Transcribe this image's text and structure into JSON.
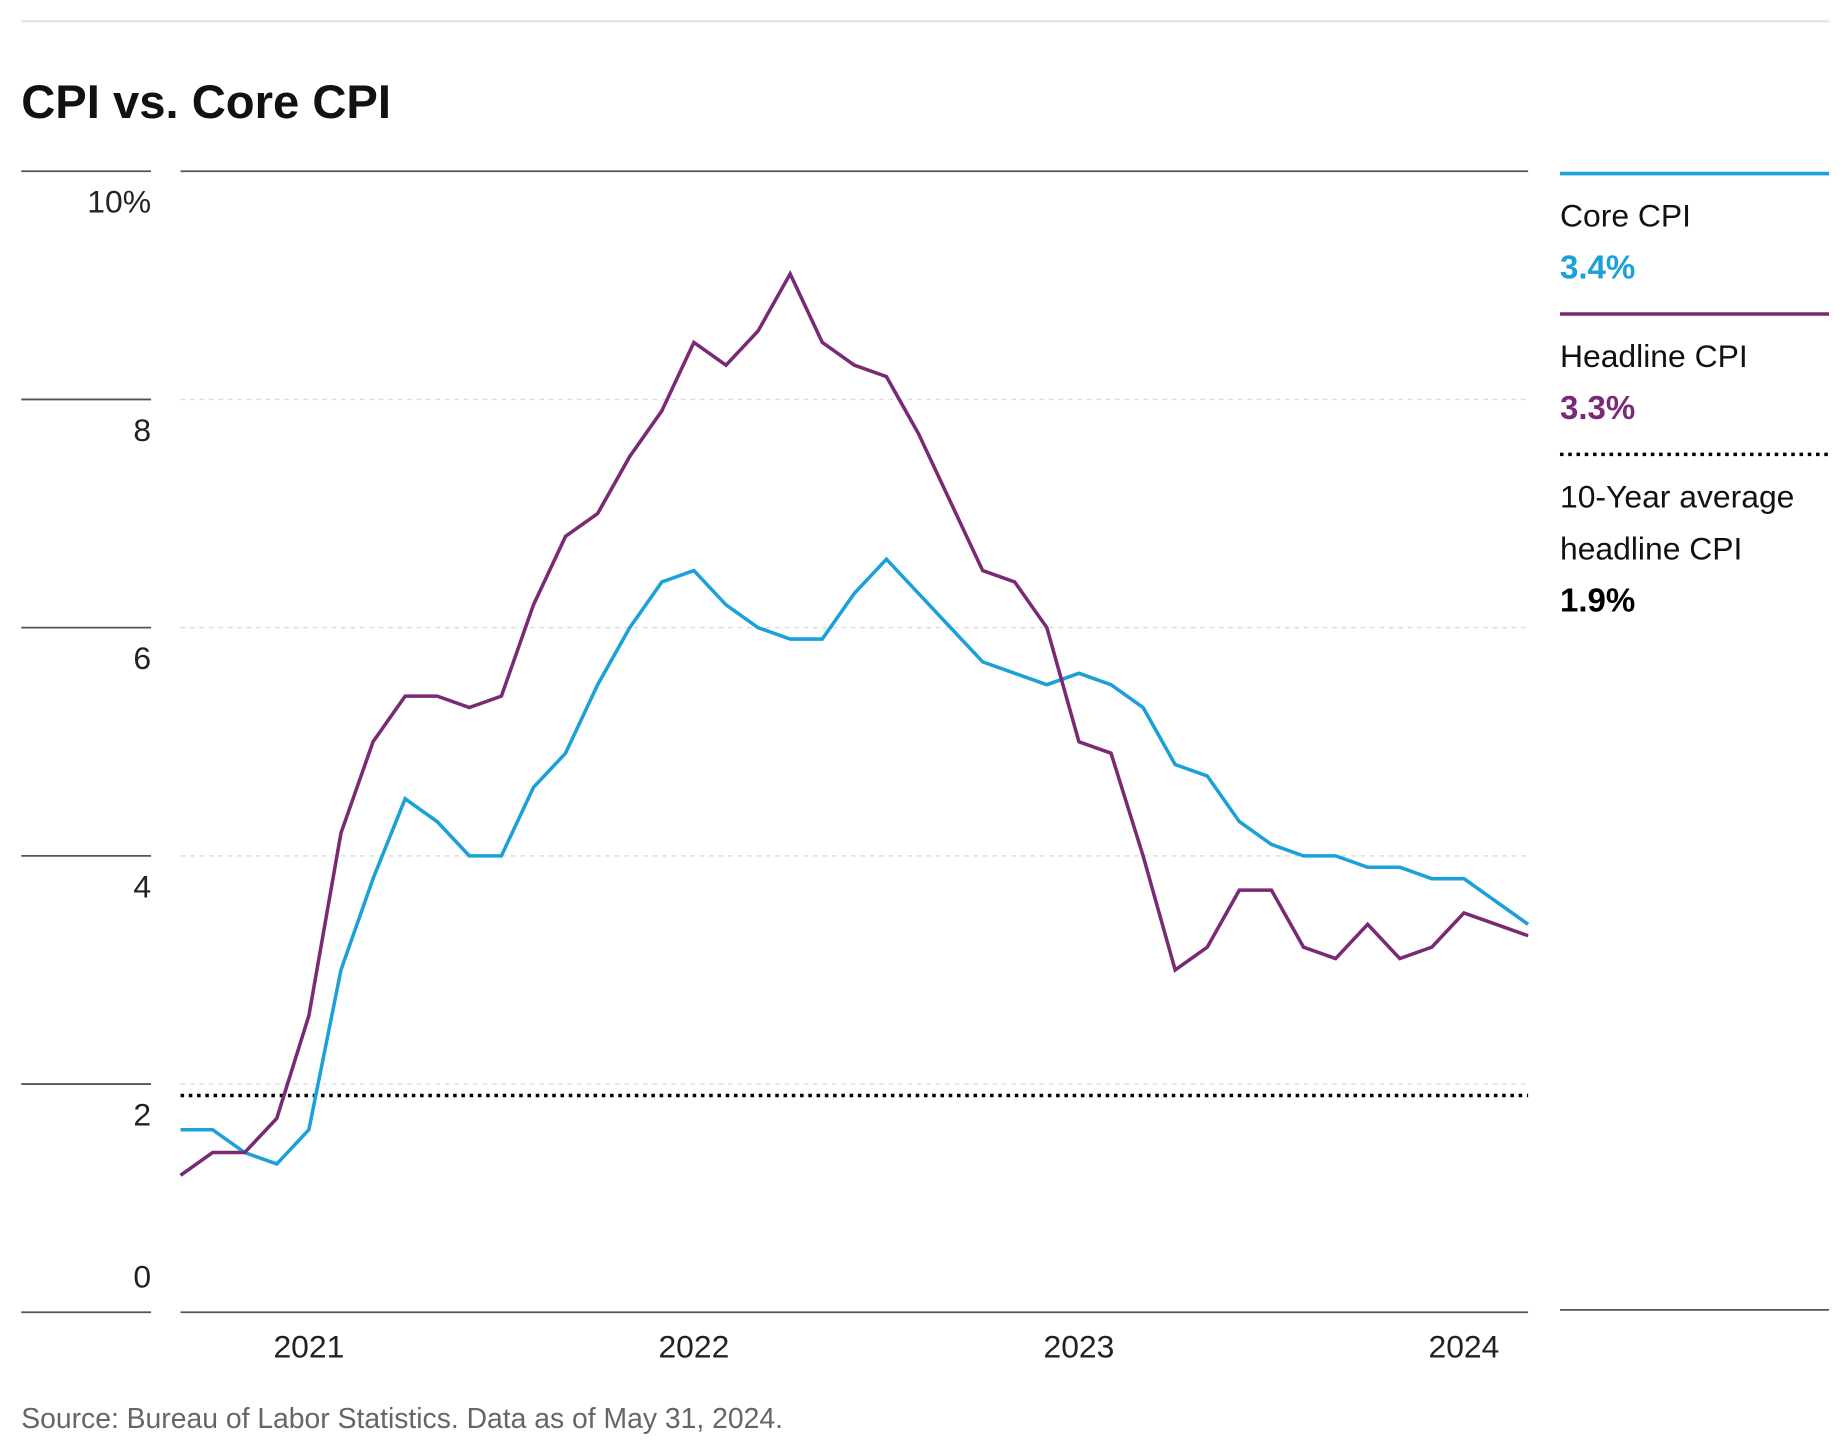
{
  "chart_data": {
    "type": "line",
    "title": "CPI vs. Core CPI",
    "source": "Source: Bureau of Labor Statistics. Data as of May 31, 2024.",
    "categories": [
      null,
      null,
      null,
      null,
      "2021",
      null,
      null,
      null,
      null,
      null,
      null,
      null,
      null,
      null,
      null,
      null,
      "2022",
      null,
      null,
      null,
      null,
      null,
      null,
      null,
      null,
      null,
      null,
      null,
      "2023",
      null,
      null,
      null,
      null,
      null,
      null,
      null,
      null,
      null,
      null,
      null,
      "2024",
      null,
      null
    ],
    "series": [
      {
        "name": "Core CPI",
        "color": "#1ba1d8",
        "value_label": "3.4%",
        "values": [
          1.6,
          1.6,
          1.4,
          1.3,
          1.6,
          3.0,
          3.8,
          4.5,
          4.3,
          4.0,
          4.0,
          4.6,
          4.9,
          5.5,
          6.0,
          6.4,
          6.5,
          6.2,
          6.0,
          5.9,
          5.9,
          6.3,
          6.6,
          6.3,
          6.0,
          5.7,
          5.6,
          5.5,
          5.6,
          5.5,
          5.3,
          4.8,
          4.7,
          4.3,
          4.1,
          4.0,
          4.0,
          3.9,
          3.9,
          3.8,
          3.8,
          3.6,
          3.4
        ]
      },
      {
        "name": "Headline CPI",
        "color": "#7a2a74",
        "value_label": "3.3%",
        "values": [
          1.2,
          1.4,
          1.4,
          1.7,
          2.6,
          4.2,
          5.0,
          5.4,
          5.4,
          5.3,
          5.4,
          6.2,
          6.8,
          7.0,
          7.5,
          7.9,
          8.5,
          8.3,
          8.6,
          9.1,
          8.5,
          8.3,
          8.2,
          7.7,
          7.1,
          6.5,
          6.4,
          6.0,
          5.0,
          4.9,
          4.0,
          3.0,
          3.2,
          3.7,
          3.7,
          3.2,
          3.1,
          3.4,
          3.1,
          3.2,
          3.5,
          3.4,
          3.3
        ]
      }
    ],
    "reference_line": {
      "name": "10-Year average headline CPI",
      "value": 1.9,
      "value_label": "1.9%",
      "color": "#000000"
    },
    "ylim": [
      0,
      10
    ],
    "yticks": [
      0,
      2,
      4,
      6,
      8,
      {
        "value": 10,
        "label": "10%"
      }
    ],
    "grid": true
  }
}
